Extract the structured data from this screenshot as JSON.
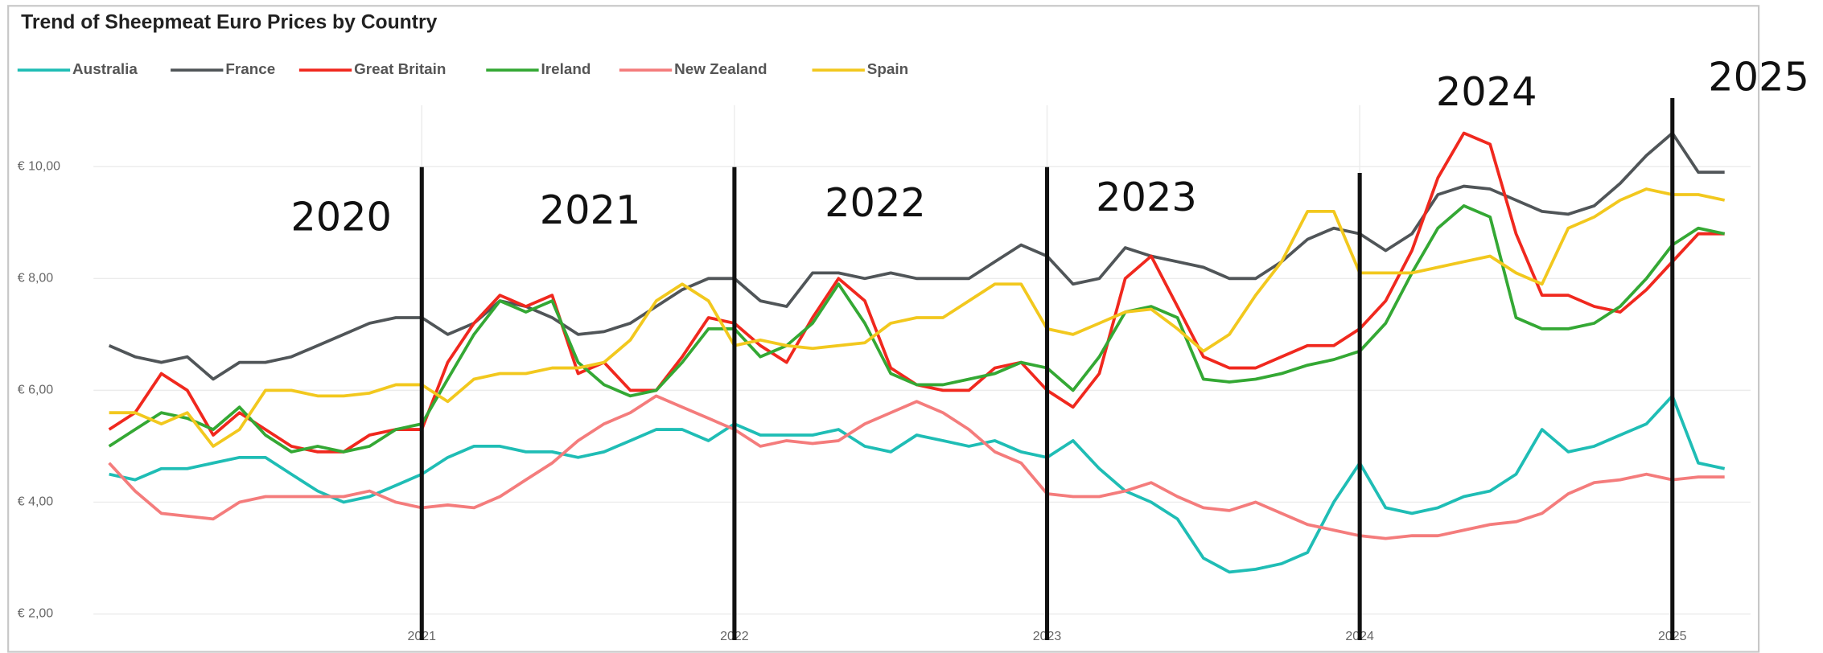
{
  "chart_data": {
    "type": "line",
    "title": "Trend of Sheepmeat Euro Prices by Country",
    "legend": "top-left",
    "grid": true,
    "xlim": [
      2019.95,
      2025.25
    ],
    "xticks": [
      2021,
      2022,
      2023,
      2024,
      2025
    ],
    "ylim": [
      1.7,
      11.1
    ],
    "yticks": [
      {
        "value": 2,
        "label": "€ 2,00"
      },
      {
        "value": 4,
        "label": "€ 4,00"
      },
      {
        "value": 6,
        "label": "€ 6,00"
      },
      {
        "value": 8,
        "label": "€ 8,00"
      },
      {
        "value": 10,
        "label": "€ 10,00"
      }
    ],
    "x": [
      2020,
      2020.083,
      2020.167,
      2020.25,
      2020.333,
      2020.417,
      2020.5,
      2020.583,
      2020.667,
      2020.75,
      2020.833,
      2020.917,
      2021,
      2021.083,
      2021.167,
      2021.25,
      2021.333,
      2021.417,
      2021.5,
      2021.583,
      2021.667,
      2021.75,
      2021.833,
      2021.917,
      2022,
      2022.083,
      2022.167,
      2022.25,
      2022.333,
      2022.417,
      2022.5,
      2022.583,
      2022.667,
      2022.75,
      2022.833,
      2022.917,
      2023,
      2023.083,
      2023.167,
      2023.25,
      2023.333,
      2023.417,
      2023.5,
      2023.583,
      2023.667,
      2023.75,
      2023.833,
      2023.917,
      2024,
      2024.083,
      2024.167,
      2024.25,
      2024.333,
      2024.417,
      2024.5,
      2024.583,
      2024.667,
      2024.75,
      2024.833,
      2024.917,
      2025,
      2025.083,
      2025.167
    ],
    "series": [
      {
        "name": "Australia",
        "color": "#1fbdb5",
        "values": [
          4.5,
          4.4,
          4.6,
          4.6,
          4.7,
          4.8,
          4.8,
          4.5,
          4.2,
          4.0,
          4.1,
          4.3,
          4.5,
          4.8,
          5.0,
          5.0,
          4.9,
          4.9,
          4.8,
          4.9,
          5.1,
          5.3,
          5.3,
          5.1,
          5.4,
          5.2,
          5.2,
          5.2,
          5.3,
          5.0,
          4.9,
          5.2,
          5.1,
          5.0,
          5.1,
          4.9,
          4.8,
          5.1,
          4.6,
          4.2,
          4.0,
          3.7,
          3.0,
          2.75,
          2.8,
          2.9,
          3.1,
          4.0,
          4.7,
          3.9,
          3.8,
          3.9,
          4.1,
          4.2,
          4.5,
          5.3,
          4.9,
          5.0,
          5.2,
          5.4,
          5.9,
          4.7,
          4.6
        ]
      },
      {
        "name": "France",
        "color": "#505558",
        "values": [
          6.8,
          6.6,
          6.5,
          6.6,
          6.2,
          6.5,
          6.5,
          6.6,
          6.8,
          7.0,
          7.2,
          7.3,
          7.3,
          7.0,
          7.2,
          7.6,
          7.5,
          7.3,
          7.0,
          7.05,
          7.2,
          7.5,
          7.8,
          8.0,
          8.0,
          7.6,
          7.5,
          8.1,
          8.1,
          8.0,
          8.1,
          8.0,
          8.0,
          8.0,
          8.3,
          8.6,
          8.4,
          7.9,
          8.0,
          8.55,
          8.4,
          8.3,
          8.2,
          8.0,
          8.0,
          8.3,
          8.7,
          8.9,
          8.8,
          8.5,
          8.8,
          9.5,
          9.65,
          9.6,
          9.4,
          9.2,
          9.15,
          9.3,
          9.7,
          10.2,
          10.6,
          9.9,
          9.9
        ]
      },
      {
        "name": "Great Britain",
        "color": "#f0281e",
        "values": [
          5.3,
          5.6,
          6.3,
          6.0,
          5.2,
          5.6,
          5.3,
          5.0,
          4.9,
          4.9,
          5.2,
          5.3,
          5.3,
          6.5,
          7.2,
          7.7,
          7.5,
          7.7,
          6.3,
          6.5,
          6.0,
          6.0,
          6.6,
          7.3,
          7.2,
          6.8,
          6.5,
          7.3,
          8.0,
          7.6,
          6.4,
          6.1,
          6.0,
          6.0,
          6.4,
          6.5,
          6.0,
          5.7,
          6.3,
          8.0,
          8.4,
          7.5,
          6.6,
          6.4,
          6.4,
          6.6,
          6.8,
          6.8,
          7.1,
          7.6,
          8.5,
          9.8,
          10.6,
          10.4,
          8.8,
          7.7,
          7.7,
          7.5,
          7.4,
          7.8,
          8.3,
          8.8,
          8.8
        ]
      },
      {
        "name": "Ireland",
        "color": "#34a834",
        "values": [
          5.0,
          5.3,
          5.6,
          5.5,
          5.3,
          5.7,
          5.2,
          4.9,
          5.0,
          4.9,
          5.0,
          5.3,
          5.4,
          6.2,
          7.0,
          7.6,
          7.4,
          7.6,
          6.5,
          6.1,
          5.9,
          6.0,
          6.5,
          7.1,
          7.1,
          6.6,
          6.8,
          7.2,
          7.9,
          7.2,
          6.3,
          6.1,
          6.1,
          6.2,
          6.3,
          6.5,
          6.4,
          6.0,
          6.6,
          7.4,
          7.5,
          7.3,
          6.2,
          6.15,
          6.2,
          6.3,
          6.45,
          6.55,
          6.7,
          7.2,
          8.1,
          8.9,
          9.3,
          9.1,
          7.3,
          7.1,
          7.1,
          7.2,
          7.5,
          8.0,
          8.6,
          8.9,
          8.8
        ]
      },
      {
        "name": "New Zealand",
        "color": "#f47c7c",
        "values": [
          4.7,
          4.2,
          3.8,
          3.75,
          3.7,
          4.0,
          4.1,
          4.1,
          4.1,
          4.1,
          4.2,
          4.0,
          3.9,
          3.95,
          3.9,
          4.1,
          4.4,
          4.7,
          5.1,
          5.4,
          5.6,
          5.9,
          5.7,
          5.5,
          5.3,
          5.0,
          5.1,
          5.05,
          5.1,
          5.4,
          5.6,
          5.8,
          5.6,
          5.3,
          4.9,
          4.7,
          4.15,
          4.1,
          4.1,
          4.2,
          4.35,
          4.1,
          3.9,
          3.85,
          4.0,
          3.8,
          3.6,
          3.5,
          3.4,
          3.35,
          3.4,
          3.4,
          3.5,
          3.6,
          3.65,
          3.8,
          4.15,
          4.35,
          4.4,
          4.5,
          4.4,
          4.45,
          4.45
        ]
      },
      {
        "name": "Spain",
        "color": "#f2c81e",
        "values": [
          5.6,
          5.6,
          5.4,
          5.6,
          5.0,
          5.3,
          6.0,
          6.0,
          5.9,
          5.9,
          5.95,
          6.1,
          6.1,
          5.8,
          6.2,
          6.3,
          6.3,
          6.4,
          6.4,
          6.5,
          6.9,
          7.6,
          7.9,
          7.6,
          6.8,
          6.9,
          6.8,
          6.75,
          6.8,
          6.85,
          7.2,
          7.3,
          7.3,
          7.6,
          7.9,
          7.9,
          7.1,
          7.0,
          7.2,
          7.4,
          7.45,
          7.1,
          6.7,
          7.0,
          7.7,
          8.3,
          9.2,
          9.2,
          8.1,
          8.1,
          8.1,
          8.2,
          8.3,
          8.4,
          8.1,
          7.9,
          8.9,
          9.1,
          9.4,
          9.6,
          9.5,
          9.5,
          9.4
        ]
      }
    ],
    "annotations": {
      "labels": [
        "2020",
        "2021",
        "2022",
        "2023",
        "2024",
        "2025"
      ],
      "lines": [
        2021,
        2022,
        2023,
        2024,
        2025
      ]
    }
  }
}
